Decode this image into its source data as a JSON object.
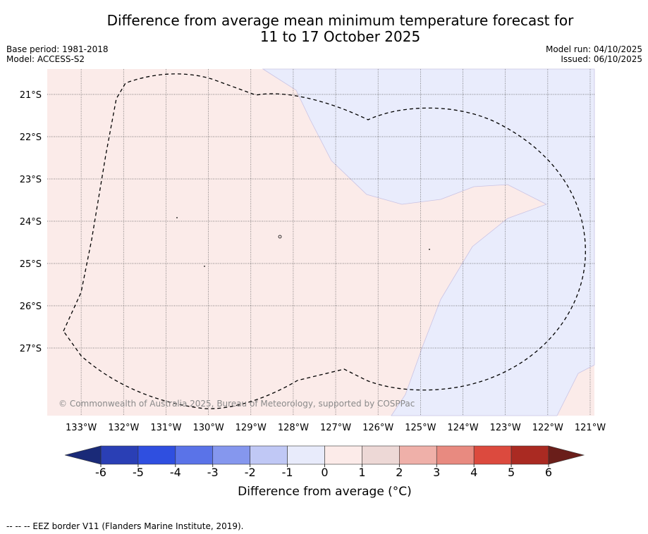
{
  "title": {
    "line1": "Difference from average mean minimum temperature forecast for",
    "line2": "11 to 17 October 2025"
  },
  "meta_left": {
    "base_period": "Base period: 1981-2018",
    "model": "Model: ACCESS-S2"
  },
  "meta_right": {
    "model_run": "Model run: 04/10/2025",
    "issued": "Issued: 06/10/2025"
  },
  "map": {
    "copyright": "© Commonwealth of Australia 2025, Bureau of Meteorology, supported by COSPPac",
    "lon_labels": [
      "133°W",
      "132°W",
      "131°W",
      "130°W",
      "129°W",
      "128°W",
      "127°W",
      "126°W",
      "125°W",
      "124°W",
      "123°W",
      "122°W",
      "121°W"
    ],
    "lon_values": [
      -133,
      -132,
      -131,
      -130,
      -129,
      -128,
      -127,
      -126,
      -125,
      -124,
      -123,
      -122,
      -121
    ],
    "lat_labels": [
      "21°S",
      "22°S",
      "23°S",
      "24°S",
      "25°S",
      "26°S",
      "27°S"
    ],
    "lat_values": [
      -21,
      -22,
      -23,
      -24,
      -25,
      -26,
      -27
    ],
    "lon_range": [
      -133.8,
      -120.9
    ],
    "lat_range": [
      -28.6,
      -20.4
    ],
    "fill_colors": {
      "warm": "#fbebe9",
      "cool": "#e9ecfc"
    }
  },
  "colorbar": {
    "label": "Difference from average (°C)",
    "ticks": [
      "-6",
      "-5",
      "-4",
      "-3",
      "-2",
      "-1",
      "0",
      "1",
      "2",
      "3",
      "4",
      "5",
      "6"
    ],
    "tick_values": [
      -6,
      -5,
      -4,
      -3,
      -2,
      -1,
      0,
      1,
      2,
      3,
      4,
      5,
      6
    ],
    "colors": [
      "#2a3fb5",
      "#2f4fe0",
      "#5a73e8",
      "#8597ee",
      "#c0c8f5",
      "#e8ebfb",
      "#fcebe9",
      "#edd8d6",
      "#efb0a9",
      "#e88a80",
      "#dc4a3e",
      "#aa2a22"
    ],
    "under_color": "#1a2a78",
    "over_color": "#6a1e1a"
  },
  "footer": {
    "legend": "--  --  -- EEZ border V11 (Flanders Marine Institute, 2019)."
  }
}
